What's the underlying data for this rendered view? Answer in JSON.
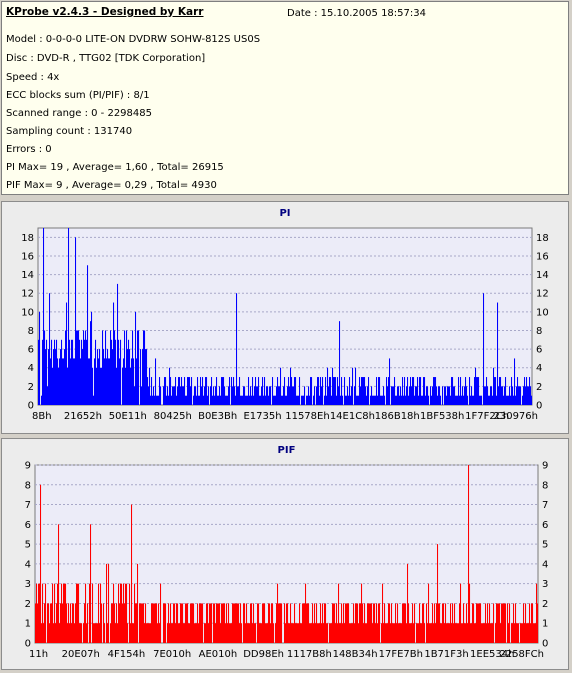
{
  "info": {
    "title": "KProbe v2.4.3 - Designed by Karr",
    "date": "Date : 15.10.2005 18:57:34",
    "lines": [
      "Model : 0-0-0-0 LITE-ON DVDRW SOHW-812S  US0S",
      "Disc : DVD-R , TTG02 [TDK Corporation]",
      "Speed : 4x",
      "ECC blocks sum (PI/PIF) : 8/1",
      "Scanned range : 0 - 2298485",
      "Sampling count : 131740",
      "Errors : 0",
      "PI Max= 19 , Average= 1,60 , Total= 26915",
      "PIF Max= 9 , Average= 0,29 , Total= 4930"
    ]
  },
  "chart_data": [
    {
      "type": "bar",
      "title": "PI",
      "color": "#0000ff",
      "ylim": [
        0,
        19
      ],
      "yticks": [
        0,
        2,
        4,
        6,
        8,
        10,
        12,
        14,
        16,
        18
      ],
      "xticks": [
        "8Bh",
        "21652h",
        "50E11h",
        "80425h",
        "B0E3Bh",
        "E1735h",
        "11578Eh",
        "14E1C8h",
        "186B18h",
        "1BF538h",
        "1F7F2Ch",
        "230976h"
      ],
      "segments": [
        {
          "range": [
            0,
            0.22
          ],
          "base": 6,
          "spread": 4,
          "peak": 19
        },
        {
          "range": [
            0.22,
            1.0
          ],
          "base": 2,
          "spread": 2,
          "peak": 12
        }
      ],
      "spikes": [
        {
          "x": 0.01,
          "value": 19
        },
        {
          "x": 0.06,
          "value": 19
        },
        {
          "x": 0.075,
          "value": 18
        },
        {
          "x": 0.1,
          "value": 15
        },
        {
          "x": 0.16,
          "value": 13
        },
        {
          "x": 0.4,
          "value": 12
        },
        {
          "x": 0.61,
          "value": 9
        },
        {
          "x": 0.9,
          "value": 12
        },
        {
          "x": 0.93,
          "value": 11
        }
      ]
    },
    {
      "type": "bar",
      "title": "PIF",
      "color": "#ff0000",
      "ylim": [
        0,
        9
      ],
      "yticks": [
        0,
        1,
        2,
        3,
        4,
        5,
        6,
        7,
        8,
        9
      ],
      "xticks": [
        "11h",
        "20E07h",
        "4F154h",
        "7E010h",
        "AE010h",
        "DD98Eh",
        "1117B8h",
        "148B34h",
        "17FE7Bh",
        "1B71F3h",
        "1EE534h",
        "2258FCh"
      ],
      "segments": [
        {
          "range": [
            0,
            0.205
          ],
          "base": 2,
          "spread": 2,
          "peak": 8
        },
        {
          "range": [
            0.205,
            1.0
          ],
          "base": 1,
          "spread": 1,
          "peak": 9
        }
      ],
      "spikes": [
        {
          "x": 0.01,
          "value": 8
        },
        {
          "x": 0.045,
          "value": 6
        },
        {
          "x": 0.11,
          "value": 6
        },
        {
          "x": 0.19,
          "value": 7
        },
        {
          "x": 0.86,
          "value": 9
        },
        {
          "x": 0.8,
          "value": 5
        },
        {
          "x": 0.74,
          "value": 4
        }
      ]
    }
  ]
}
